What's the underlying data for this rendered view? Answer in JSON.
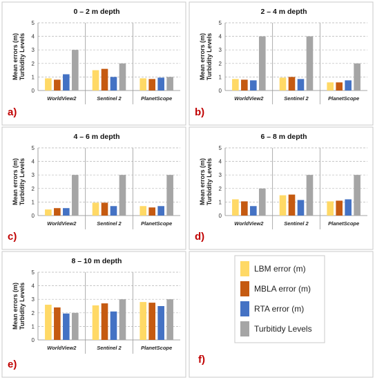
{
  "colors": {
    "LBM": "#ffd966",
    "MBLA": "#c55a11",
    "RTA": "#4472c4",
    "Turbidity": "#a5a5a5",
    "panel_label": "#c00000"
  },
  "legend": {
    "items": [
      {
        "key": "LBM",
        "label": "LBM error (m)"
      },
      {
        "key": "MBLA",
        "label": "MBLA error (m)"
      },
      {
        "key": "RTA",
        "label": "RTA error (m)"
      },
      {
        "key": "Turbidity",
        "label": "Turbitidy  Levels"
      }
    ],
    "panel_label": "f)"
  },
  "chart_data": [
    {
      "type": "bar",
      "panel_label": "a)",
      "title": "0 – 2 m depth",
      "ylabel": [
        "Mean errors (m)",
        "Turbidity Levels"
      ],
      "ylim": [
        0,
        5
      ],
      "yticks": [
        0,
        1,
        2,
        3,
        4,
        5
      ],
      "categories": [
        "WorldView2",
        "Sentinel 2",
        "PlanetScope"
      ],
      "series": [
        {
          "key": "LBM",
          "values": [
            0.9,
            1.5,
            0.9
          ]
        },
        {
          "key": "MBLA",
          "values": [
            0.8,
            1.6,
            0.85
          ]
        },
        {
          "key": "RTA",
          "values": [
            1.2,
            1.0,
            0.95
          ]
        },
        {
          "key": "Turbidity",
          "values": [
            3.0,
            2.0,
            1.0
          ]
        }
      ]
    },
    {
      "type": "bar",
      "panel_label": "b)",
      "title": "2 – 4 m depth",
      "ylabel": [
        "Mean errors (m)",
        "Turbidity Levels"
      ],
      "ylim": [
        0,
        5
      ],
      "yticks": [
        0,
        1,
        2,
        3,
        4,
        5
      ],
      "categories": [
        "WorldView2",
        "Sentinel 2",
        "PlanetScope"
      ],
      "series": [
        {
          "key": "LBM",
          "values": [
            0.85,
            0.95,
            0.6
          ]
        },
        {
          "key": "MBLA",
          "values": [
            0.8,
            1.0,
            0.6
          ]
        },
        {
          "key": "RTA",
          "values": [
            0.75,
            0.85,
            0.75
          ]
        },
        {
          "key": "Turbidity",
          "values": [
            4.0,
            4.0,
            2.0
          ]
        }
      ]
    },
    {
      "type": "bar",
      "panel_label": "c)",
      "title": "4 – 6 m depth",
      "ylabel": [
        "Mean errors (m)",
        "Turbidity Levels"
      ],
      "ylim": [
        0,
        5
      ],
      "yticks": [
        0,
        1,
        2,
        3,
        4,
        5
      ],
      "categories": [
        "WorldView2",
        "Sentinel 2",
        "PlanetScope"
      ],
      "series": [
        {
          "key": "LBM",
          "values": [
            0.45,
            0.95,
            0.7
          ]
        },
        {
          "key": "MBLA",
          "values": [
            0.55,
            0.95,
            0.6
          ]
        },
        {
          "key": "RTA",
          "values": [
            0.55,
            0.7,
            0.7
          ]
        },
        {
          "key": "Turbidity",
          "values": [
            3.0,
            3.0,
            3.0
          ]
        }
      ]
    },
    {
      "type": "bar",
      "panel_label": "d)",
      "title": "6 – 8 m depth",
      "ylabel": [
        "Mean errors (m)",
        "Turbidity Levels"
      ],
      "ylim": [
        0,
        5
      ],
      "yticks": [
        0,
        1,
        2,
        3,
        4,
        5
      ],
      "categories": [
        "WorldView2",
        "Sentinel 2",
        "PlanetScope"
      ],
      "series": [
        {
          "key": "LBM",
          "values": [
            1.2,
            1.5,
            1.05
          ]
        },
        {
          "key": "MBLA",
          "values": [
            1.05,
            1.55,
            1.1
          ]
        },
        {
          "key": "RTA",
          "values": [
            0.7,
            1.15,
            1.2
          ]
        },
        {
          "key": "Turbidity",
          "values": [
            2.0,
            3.0,
            3.0
          ]
        }
      ]
    },
    {
      "type": "bar",
      "panel_label": "e)",
      "title": "8 – 10 m depth",
      "ylabel": [
        "Mean errors (m)",
        "Turbidity Levels"
      ],
      "ylim": [
        0,
        5
      ],
      "yticks": [
        0,
        1,
        2,
        3,
        4,
        5
      ],
      "categories": [
        "WorldView2",
        "Sentinel 2",
        "PlanetScope"
      ],
      "series": [
        {
          "key": "LBM",
          "values": [
            2.6,
            2.55,
            2.8
          ]
        },
        {
          "key": "MBLA",
          "values": [
            2.4,
            2.7,
            2.75
          ]
        },
        {
          "key": "RTA",
          "values": [
            1.95,
            2.1,
            2.5
          ]
        },
        {
          "key": "Turbidity",
          "values": [
            2.0,
            3.0,
            3.0
          ]
        }
      ]
    }
  ]
}
